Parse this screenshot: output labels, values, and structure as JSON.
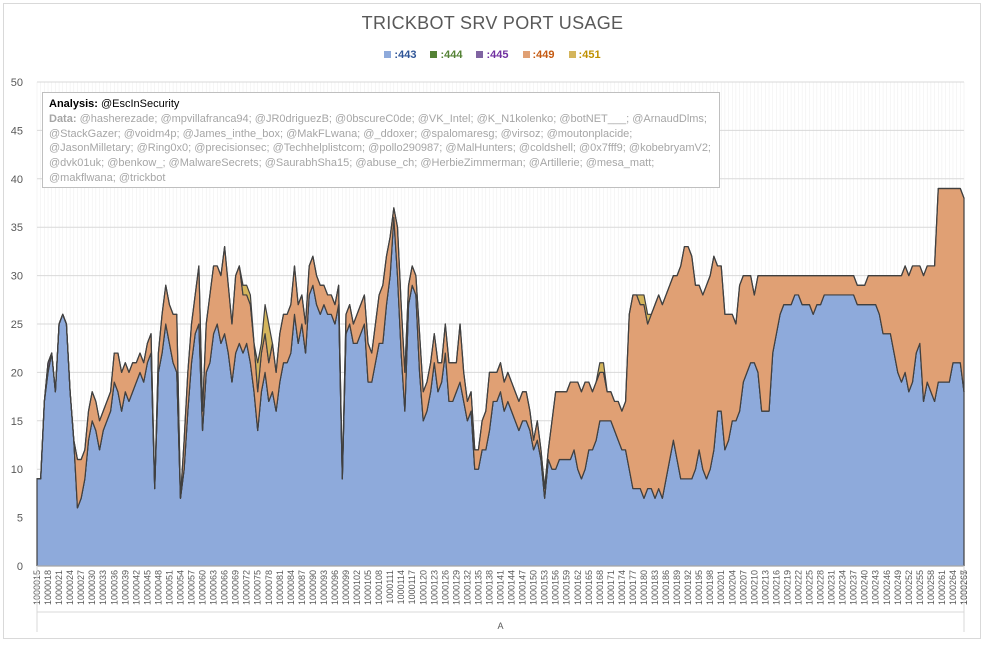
{
  "chart_data": {
    "type": "area",
    "stacked": true,
    "title": "TRICKBOT SRV PORT USAGE",
    "xlabel": "A",
    "ylabel": "",
    "ylim": [
      0,
      50
    ],
    "yticks": [
      0,
      5,
      10,
      15,
      20,
      25,
      30,
      35,
      40,
      45,
      50
    ],
    "grid": true,
    "legend_position": "top",
    "x_start": 1000015,
    "x_end": 1000265,
    "x_tick_every": 3,
    "x_tick_prefix": "1000",
    "series": [
      {
        "name": ":443",
        "color": "#8eaadb",
        "label_color": "#2f5597",
        "values": [
          9,
          9,
          17,
          20,
          22,
          18,
          25,
          26,
          25,
          18,
          13,
          6,
          7,
          9,
          13,
          15,
          14,
          12,
          14,
          15,
          16,
          19,
          18,
          16,
          18,
          17,
          18,
          19,
          20,
          19,
          21,
          22,
          8,
          20,
          22,
          25,
          23,
          21,
          20,
          7,
          10,
          16,
          21,
          24,
          25,
          14,
          20,
          21,
          24,
          25,
          23,
          24,
          22,
          19,
          22,
          23,
          22,
          23,
          21,
          18,
          14,
          18,
          20,
          17,
          18,
          16,
          19,
          21,
          21,
          22,
          26,
          23,
          25,
          22,
          28,
          29,
          27,
          26,
          27,
          26,
          26,
          25,
          27,
          9,
          24,
          25,
          23,
          23,
          24,
          25,
          19,
          19,
          21,
          23,
          23,
          27,
          30,
          36,
          30,
          22,
          16,
          27,
          29,
          28,
          20,
          15,
          16,
          18,
          21,
          18,
          19,
          22,
          17,
          17,
          18,
          19,
          17,
          15,
          16,
          10,
          10,
          12,
          12,
          14,
          17,
          17,
          18,
          16,
          17,
          16,
          15,
          14,
          15,
          15,
          14,
          12,
          13,
          11,
          7,
          11,
          10,
          10,
          11,
          11,
          11,
          11,
          12,
          10,
          9,
          10,
          12,
          12,
          13,
          15,
          15,
          15,
          15,
          14,
          13,
          12,
          12,
          10,
          8,
          8,
          8,
          7,
          8,
          8,
          7,
          8,
          7,
          9,
          11,
          13,
          11,
          9,
          9,
          9,
          9,
          10,
          12,
          10,
          9,
          10,
          12,
          16,
          16,
          12,
          13,
          15,
          15,
          16,
          19,
          20,
          21,
          21,
          20,
          16,
          16,
          16,
          22,
          24,
          26,
          27,
          27,
          27,
          28,
          28,
          27,
          27,
          27,
          26,
          27,
          27,
          28,
          28,
          28,
          28,
          28,
          28,
          28,
          28,
          28,
          27,
          27,
          27,
          27,
          27,
          27,
          26,
          24,
          24,
          24,
          22,
          20,
          19,
          20,
          18,
          19,
          22,
          23,
          17,
          19,
          18,
          17,
          19,
          19,
          19,
          19,
          21,
          21,
          21,
          18
        ]
      },
      {
        "name": ":444",
        "color": "#548235",
        "label_color": "#548235",
        "values": [
          0,
          0,
          0,
          0,
          0,
          0,
          0,
          0,
          0,
          0,
          0,
          0,
          0,
          0,
          0,
          0,
          0,
          0,
          0,
          0,
          0,
          0,
          0,
          0,
          0,
          0,
          0,
          0,
          0,
          0,
          0,
          0,
          0,
          0,
          0,
          0,
          0,
          0,
          0,
          0,
          0,
          0,
          0,
          0,
          0,
          0,
          0,
          0,
          0,
          0,
          0,
          0,
          0,
          0,
          0,
          0,
          0,
          0,
          0,
          0,
          0,
          0,
          0,
          0,
          0,
          0,
          0,
          0,
          0,
          0,
          0,
          0,
          0,
          0,
          0,
          0,
          0,
          0,
          0,
          0,
          0,
          0,
          0,
          0,
          0,
          0,
          0,
          0,
          0,
          0,
          0,
          0,
          0,
          0,
          0,
          0,
          0,
          0,
          0,
          0,
          0,
          0,
          0,
          0,
          0,
          0,
          0,
          0,
          0,
          0,
          0,
          0,
          0,
          0,
          0,
          0,
          0,
          0,
          0,
          0,
          0,
          0,
          0,
          0,
          0,
          0,
          0,
          0,
          0,
          0,
          0,
          0,
          0,
          0,
          0,
          0,
          0,
          0,
          0,
          0,
          0,
          0,
          0,
          0,
          0,
          0,
          0,
          0,
          0,
          0,
          0,
          0,
          0,
          0,
          0,
          0,
          0,
          0,
          0,
          0,
          0,
          0,
          0,
          0,
          0,
          0,
          0,
          0,
          0,
          0,
          0,
          0,
          0,
          0,
          0,
          0,
          0,
          0,
          0,
          0,
          0,
          0,
          0,
          0,
          0,
          0,
          0,
          0,
          0,
          0,
          0,
          0,
          0,
          0,
          0,
          0,
          0,
          0,
          0,
          0,
          0,
          0,
          0,
          0,
          0,
          0,
          0,
          0,
          0,
          0,
          0,
          0,
          0,
          0,
          0,
          0,
          0,
          0,
          0,
          0,
          0,
          0,
          0,
          0,
          0,
          0,
          0,
          0,
          0,
          0,
          0,
          0,
          0,
          0,
          0,
          0,
          0,
          0,
          0,
          0,
          0,
          0,
          0,
          0,
          0,
          0,
          0,
          0,
          0,
          0,
          0
        ]
      },
      {
        "name": ":445",
        "color": "#8064a2",
        "label_color": "#7030a0",
        "values": [
          0,
          0,
          0,
          1,
          0,
          0,
          0,
          0,
          0,
          0,
          0,
          0,
          0,
          0,
          0,
          0,
          0,
          0,
          0,
          0,
          0,
          0,
          0,
          0,
          0,
          0,
          0,
          0,
          0,
          0,
          0,
          0,
          0,
          0,
          0,
          0,
          0,
          0,
          0,
          0,
          0,
          0,
          0,
          0,
          0,
          0,
          0,
          0,
          0,
          0,
          0,
          0,
          0,
          0,
          0,
          0,
          0,
          0,
          0,
          0,
          0,
          0,
          0,
          0,
          0,
          0,
          0,
          0,
          0,
          0,
          0,
          0,
          0,
          0,
          0,
          0,
          0,
          0,
          0,
          0,
          0,
          0,
          0,
          0,
          0,
          0,
          0,
          0,
          0,
          0,
          0,
          0,
          0,
          0,
          0,
          0,
          0,
          0,
          0,
          0,
          0,
          0,
          0,
          0,
          0,
          0,
          0,
          0,
          0,
          0,
          0,
          0,
          0,
          0,
          0,
          0,
          0,
          0,
          0,
          0,
          0,
          0,
          0,
          0,
          0,
          0,
          0,
          0,
          0,
          0,
          0,
          0,
          0,
          0,
          0,
          0,
          0,
          0,
          0,
          0,
          0,
          0,
          0,
          0,
          0,
          0,
          0,
          0,
          0,
          0,
          0,
          0,
          0,
          0,
          0,
          0,
          0,
          0,
          0,
          0,
          0,
          0,
          0,
          0,
          0,
          0,
          0,
          0,
          0,
          0,
          0,
          0,
          0,
          0,
          0,
          0,
          0,
          0,
          0,
          0,
          0,
          0,
          0,
          0,
          0,
          0,
          0,
          0,
          0,
          0,
          0,
          0,
          0,
          0,
          0,
          0,
          0,
          0,
          0,
          0,
          0,
          0,
          0,
          0,
          0,
          0,
          0,
          0,
          0,
          0,
          0,
          0,
          0,
          0,
          0,
          0,
          0,
          0,
          0,
          0,
          0,
          0,
          0,
          0,
          0,
          0,
          0,
          0,
          0,
          0,
          0,
          0,
          0,
          0,
          0,
          0,
          0,
          0,
          0,
          0,
          0,
          0,
          0,
          0,
          0,
          0,
          0,
          0,
          0,
          0,
          0
        ]
      },
      {
        "name": ":449",
        "color": "#e0a074",
        "label_color": "#c55a11",
        "values": [
          0,
          0,
          0,
          0,
          0,
          0,
          0,
          0,
          0,
          0,
          0,
          5,
          4,
          3,
          3,
          3,
          3,
          3,
          2,
          2,
          2,
          3,
          4,
          4,
          3,
          3,
          3,
          2,
          2,
          2,
          2,
          2,
          0,
          2,
          4,
          4,
          4,
          5,
          6,
          0,
          3,
          4,
          4,
          4,
          6,
          2,
          5,
          7,
          7,
          6,
          7,
          9,
          7,
          6,
          8,
          8,
          6,
          5,
          6,
          5,
          4,
          4,
          4,
          4,
          5,
          4,
          5,
          5,
          5,
          5,
          5,
          4,
          3,
          3,
          3,
          3,
          3,
          3,
          2,
          2,
          2,
          2,
          2,
          0,
          2,
          2,
          2,
          3,
          3,
          3,
          4,
          3,
          4,
          5,
          6,
          5,
          4,
          1,
          5,
          5,
          4,
          2,
          2,
          2,
          4,
          3,
          3,
          3,
          3,
          3,
          2,
          3,
          4,
          4,
          3,
          6,
          3,
          2,
          2,
          2,
          2,
          3,
          4,
          6,
          3,
          3,
          3,
          3,
          3,
          3,
          3,
          3,
          3,
          3,
          2,
          1,
          2,
          1,
          1,
          1,
          5,
          8,
          7,
          7,
          7,
          8,
          7,
          9,
          9,
          9,
          7,
          6,
          6,
          5,
          5,
          3,
          3,
          3,
          4,
          4,
          5,
          16,
          20,
          20,
          19,
          20,
          17,
          18,
          20,
          20,
          20,
          19,
          18,
          17,
          19,
          22,
          24,
          24,
          23,
          19,
          17,
          18,
          20,
          20,
          20,
          15,
          15,
          14,
          13,
          11,
          10,
          13,
          11,
          10,
          9,
          7,
          10,
          14,
          14,
          14,
          8,
          6,
          4,
          3,
          3,
          3,
          2,
          2,
          3,
          3,
          3,
          4,
          3,
          3,
          2,
          2,
          2,
          2,
          2,
          2,
          2,
          2,
          2,
          2,
          2,
          2,
          3,
          3,
          3,
          4,
          6,
          6,
          6,
          8,
          10,
          11,
          11,
          12,
          12,
          9,
          8,
          13,
          12,
          13,
          14,
          20,
          20,
          20,
          20,
          18,
          18,
          18,
          20
        ]
      },
      {
        "name": ":451",
        "color": "#d4b55c",
        "label_color": "#bf9000",
        "values": [
          0,
          0,
          0,
          0,
          0,
          0,
          0,
          0,
          0,
          0,
          0,
          0,
          0,
          0,
          0,
          0,
          0,
          0,
          0,
          0,
          0,
          0,
          0,
          0,
          0,
          0,
          0,
          0,
          0,
          0,
          0,
          0,
          0,
          0,
          0,
          0,
          0,
          0,
          0,
          0,
          0,
          0,
          0,
          0,
          0,
          0,
          0,
          0,
          0,
          0,
          0,
          0,
          0,
          0,
          0,
          0,
          1,
          1,
          1,
          0,
          3,
          1,
          3,
          4,
          0,
          0,
          0,
          0,
          0,
          0,
          0,
          0,
          0,
          0,
          0,
          0,
          0,
          0,
          0,
          0,
          0,
          0,
          0,
          0,
          0,
          0,
          0,
          0,
          0,
          0,
          0,
          0,
          0,
          0,
          0,
          0,
          0,
          0,
          0,
          0,
          0,
          0,
          0,
          0,
          0,
          0,
          0,
          0,
          0,
          0,
          0,
          0,
          0,
          0,
          0,
          0,
          0,
          0,
          0,
          0,
          0,
          0,
          0,
          0,
          0,
          0,
          0,
          0,
          0,
          0,
          0,
          0,
          0,
          0,
          0,
          0,
          0,
          0,
          0,
          0,
          0,
          0,
          0,
          0,
          0,
          0,
          0,
          0,
          0,
          0,
          0,
          0,
          0,
          1,
          1,
          0,
          0,
          0,
          0,
          0,
          0,
          0,
          0,
          0,
          1,
          1,
          1,
          0,
          0,
          0,
          0,
          0,
          0,
          0,
          0,
          0,
          0,
          0,
          0,
          0,
          0,
          0,
          0,
          0,
          0,
          0,
          0,
          0,
          0,
          0,
          0,
          0,
          0,
          0,
          0,
          0,
          0,
          0,
          0,
          0,
          0,
          0,
          0,
          0,
          0,
          0,
          0,
          0,
          0,
          0,
          0,
          0,
          0,
          0,
          0,
          0,
          0,
          0,
          0,
          0,
          0,
          0,
          0,
          0,
          0,
          0,
          0,
          0,
          0,
          0,
          0,
          0,
          0,
          0,
          0,
          0,
          0,
          0,
          0,
          0,
          0,
          0,
          0,
          0,
          0,
          0,
          0,
          0,
          0,
          0,
          0,
          0,
          0,
          0,
          0
        ]
      }
    ],
    "annotation": {
      "analysis_label": "Analysis:",
      "analysis_text": "@EscInSecurity",
      "data_label": "Data:",
      "data_text": "@hasherezade; @mpvillafranca94; @JR0driguezB; @0bscureC0de; @VK_Intel; @K_N1kolenko; @botNET___; @ArnaudDlms; @StackGazer; @voidm4p; @James_inthe_box; @MakFLwana; @_ddoxer; @spalomaresg; @virsoz; @moutonplacide; @JasonMilletary; @Ring0x0; @precisionsec; @Techhelplistcom; @pollo290987; @MalHunters; @coldshell; @0x7fff9; @kobebryamV2; @dvk01uk; @benkow_; @MalwareSecrets; @SaurabhSha15; @abuse_ch; @HerbieZimmerman; @Artillerie; @mesa_matt; @makflwana; @trickbot"
    }
  }
}
